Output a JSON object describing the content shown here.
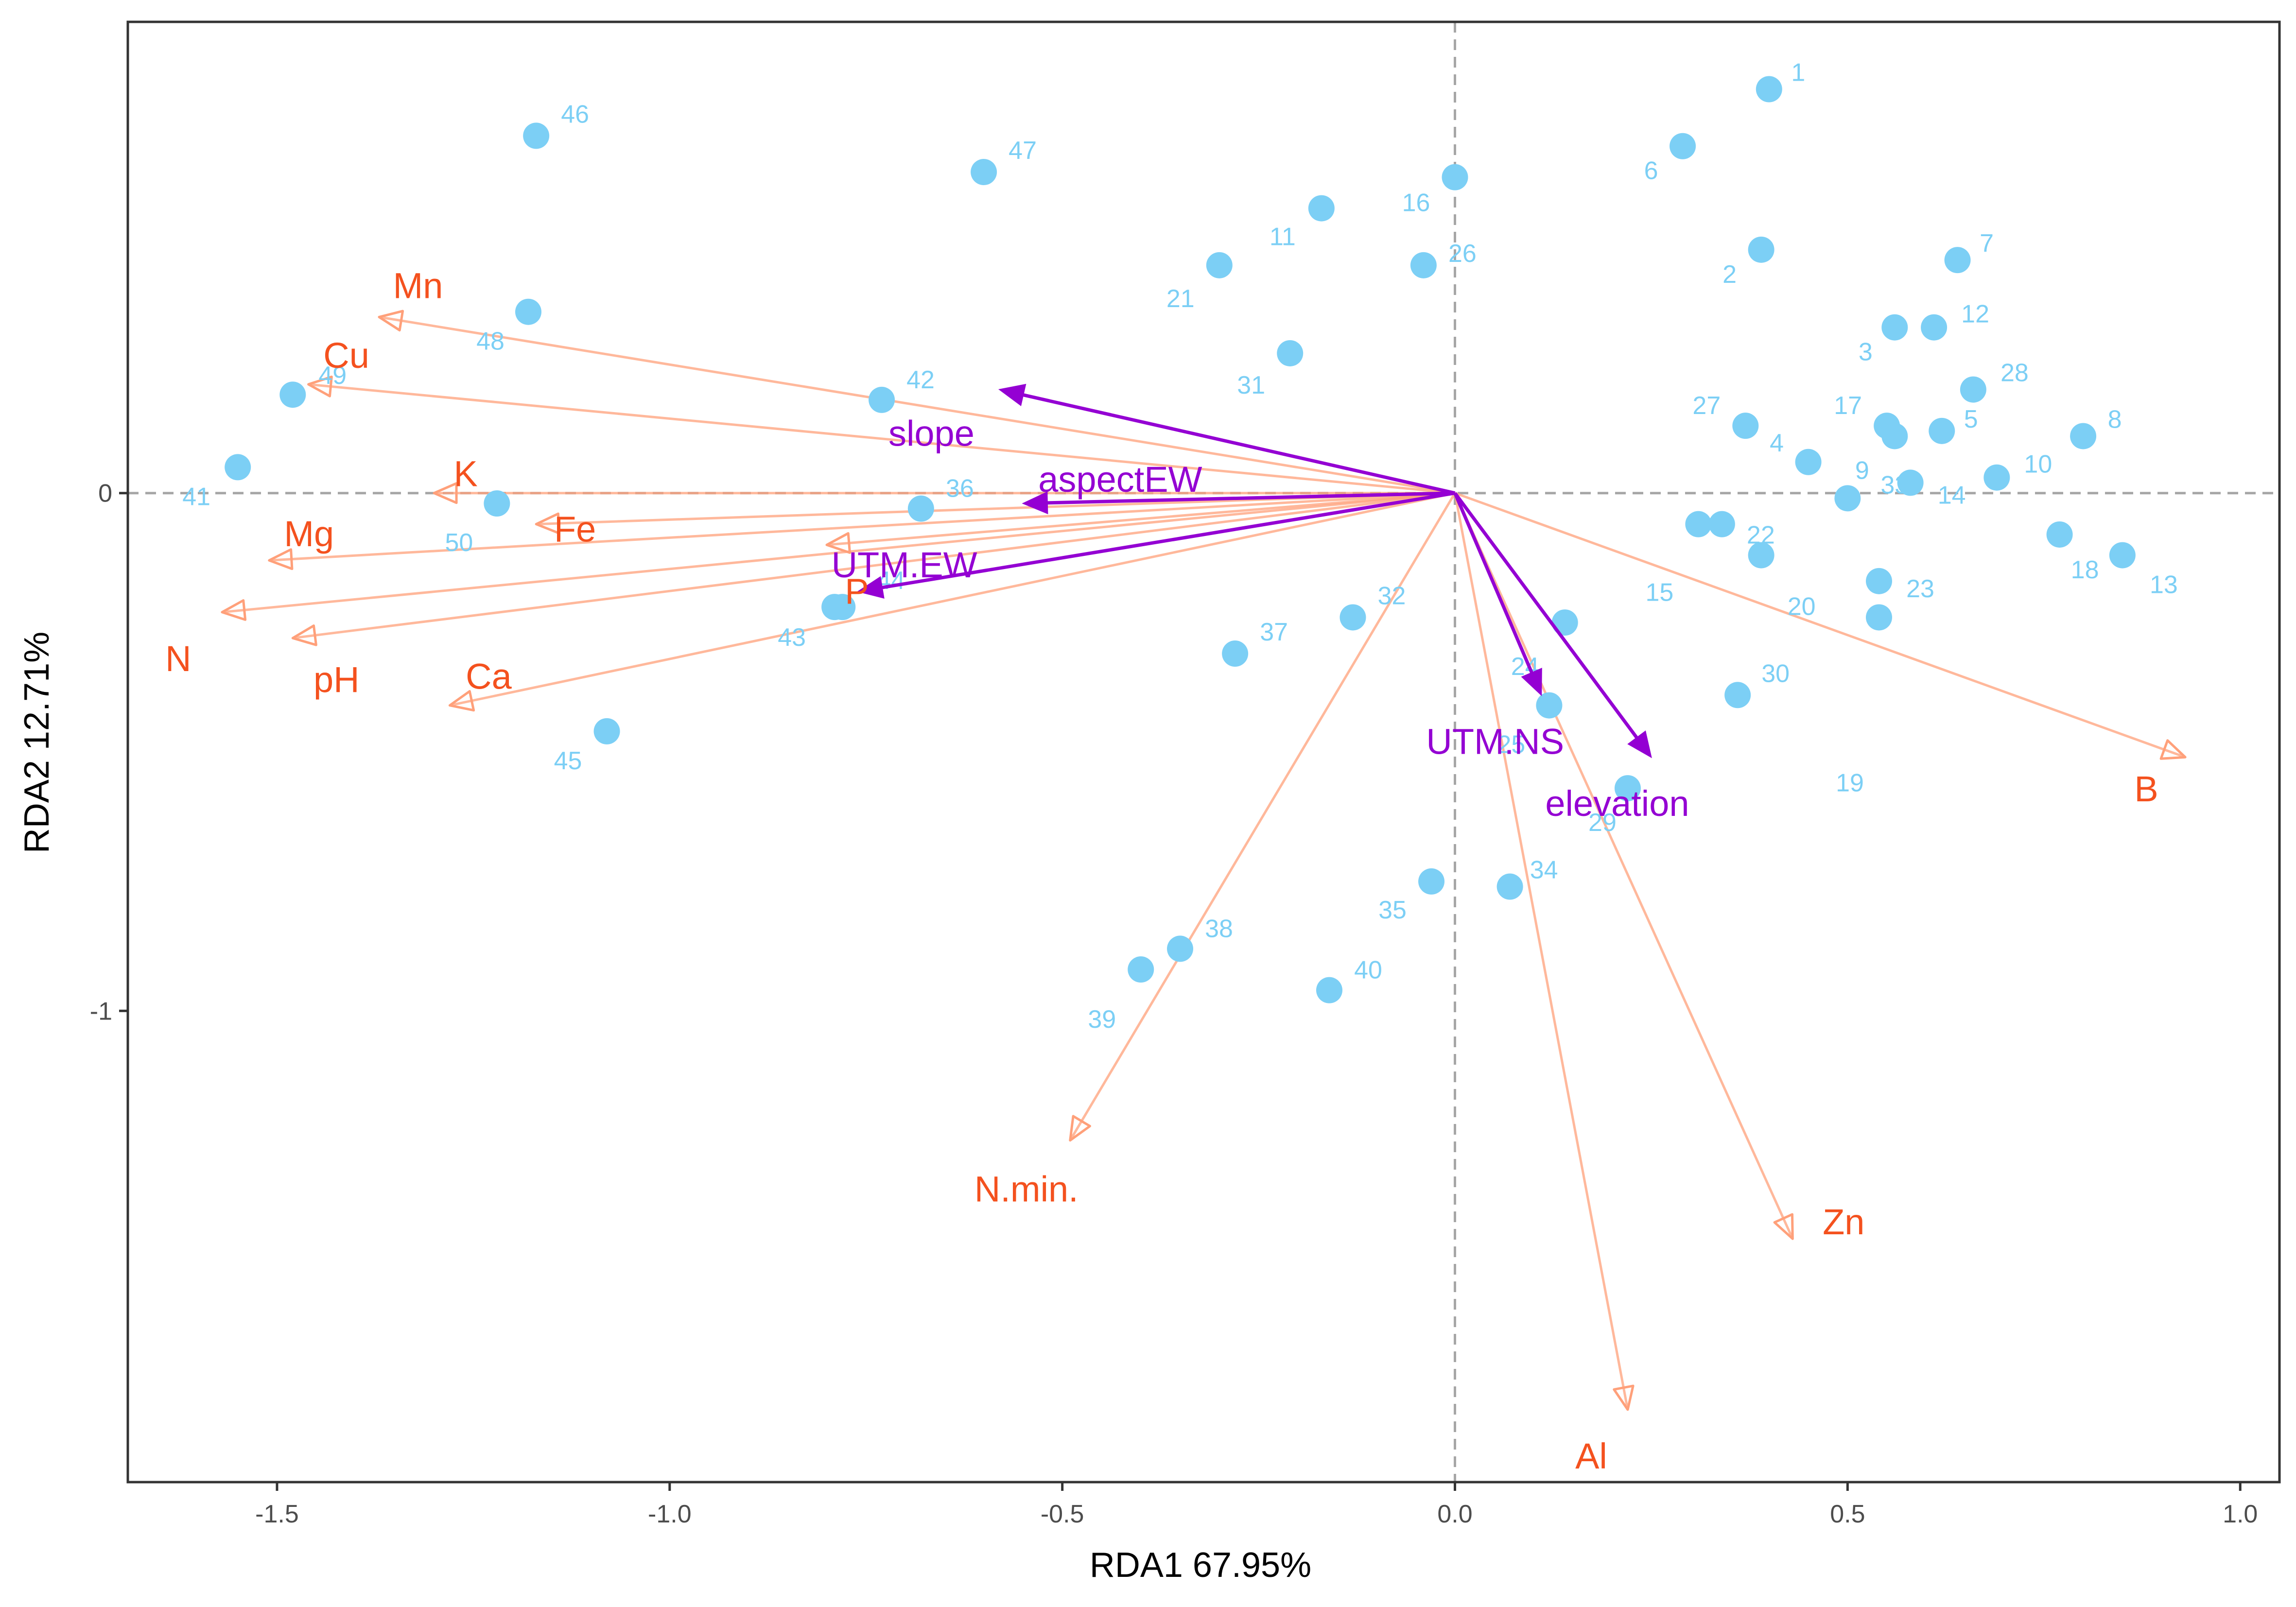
{
  "chart_data": {
    "type": "scatter",
    "subtype": "rda-biplot",
    "title": "",
    "xlabel": "RDA1 67.95%",
    "ylabel": "RDA2 12.71%",
    "xlim": [
      -1.69,
      1.05
    ],
    "ylim": [
      -1.91,
      0.91
    ],
    "x_ticks": [
      -1.5,
      -1.0,
      -0.5,
      0.0,
      0.5,
      1.0
    ],
    "x_tick_labels": [
      "-1.5",
      "-1.0",
      "-0.5",
      "0.0",
      "0.5",
      "1.0"
    ],
    "y_ticks": [
      -1,
      0
    ],
    "y_tick_labels": [
      "-1",
      "0"
    ],
    "grid": false,
    "reference_lines": {
      "x": 0,
      "y": 0,
      "style": "dashed"
    },
    "colors": {
      "sites": "#7ccff5",
      "response_arrows": "#ffa07a",
      "response_labels": "#f4511e",
      "explanatory_arrows": "#9400d3",
      "reference_lines": "#a6a6a6",
      "panel_border": "#333333"
    },
    "series": [
      {
        "name": "",
        "kind": "points",
        "points": [
          {
            "label": "1",
            "x": 0.4,
            "y": 0.78
          },
          {
            "label": "2",
            "x": 0.39,
            "y": 0.47
          },
          {
            "label": "3",
            "x": 0.56,
            "y": 0.32
          },
          {
            "label": "4",
            "x": 0.45,
            "y": 0.06
          },
          {
            "label": "5",
            "x": 0.62,
            "y": 0.12
          },
          {
            "label": "6",
            "x": 0.29,
            "y": 0.67
          },
          {
            "label": "7",
            "x": 0.64,
            "y": 0.45
          },
          {
            "label": "8",
            "x": 0.8,
            "y": 0.11
          },
          {
            "label": "9",
            "x": 0.5,
            "y": -0.01
          },
          {
            "label": "10",
            "x": 0.69,
            "y": 0.03
          },
          {
            "label": "11",
            "x": -0.17,
            "y": 0.55
          },
          {
            "label": "12",
            "x": 0.61,
            "y": 0.32
          },
          {
            "label": "13",
            "x": 0.85,
            "y": -0.12
          },
          {
            "label": "14",
            "x": 0.58,
            "y": 0.02
          },
          {
            "label": "15",
            "x": 0.31,
            "y": -0.06
          },
          {
            "label": "16",
            "x": 0.0,
            "y": 0.61
          },
          {
            "label": "17",
            "x": 0.55,
            "y": 0.13
          },
          {
            "label": "18",
            "x": 0.77,
            "y": -0.08
          },
          {
            "label": "19",
            "x": 0.54,
            "y": -0.24
          },
          {
            "label": "20",
            "x": 0.39,
            "y": -0.12
          },
          {
            "label": "21",
            "x": -0.3,
            "y": 0.44
          },
          {
            "label": "22",
            "x": 0.34,
            "y": -0.06
          },
          {
            "label": "23",
            "x": 0.54,
            "y": -0.17
          },
          {
            "label": "24",
            "x": 0.14,
            "y": -0.25
          },
          {
            "label": "25",
            "x": 0.12,
            "y": -0.41
          },
          {
            "label": "26",
            "x": -0.04,
            "y": 0.44
          },
          {
            "label": "27",
            "x": 0.37,
            "y": 0.13
          },
          {
            "label": "28",
            "x": 0.66,
            "y": 0.2
          },
          {
            "label": "29",
            "x": 0.22,
            "y": -0.57
          },
          {
            "label": "30",
            "x": 0.36,
            "y": -0.39
          },
          {
            "label": "31",
            "x": -0.21,
            "y": 0.27
          },
          {
            "label": "32",
            "x": -0.13,
            "y": -0.24
          },
          {
            "label": "33",
            "x": 0.56,
            "y": 0.11
          },
          {
            "label": "34",
            "x": 0.07,
            "y": -0.76
          },
          {
            "label": "35",
            "x": -0.03,
            "y": -0.75
          },
          {
            "label": "36",
            "x": -0.68,
            "y": -0.03
          },
          {
            "label": "37",
            "x": -0.28,
            "y": -0.31
          },
          {
            "label": "38",
            "x": -0.35,
            "y": -0.88
          },
          {
            "label": "39",
            "x": -0.4,
            "y": -0.92
          },
          {
            "label": "40",
            "x": -0.16,
            "y": -0.96
          },
          {
            "label": "41",
            "x": -1.55,
            "y": 0.05
          },
          {
            "label": "42",
            "x": -0.73,
            "y": 0.18
          },
          {
            "label": "43",
            "x": -0.79,
            "y": -0.22
          },
          {
            "label": "44",
            "x": -0.78,
            "y": -0.22
          },
          {
            "label": "45",
            "x": -1.08,
            "y": -0.46
          },
          {
            "label": "46",
            "x": -1.17,
            "y": 0.69
          },
          {
            "label": "47",
            "x": -0.6,
            "y": 0.62
          },
          {
            "label": "48",
            "x": -1.18,
            "y": 0.35
          },
          {
            "label": "49",
            "x": -1.48,
            "y": 0.19
          },
          {
            "label": "50",
            "x": -1.22,
            "y": -0.02
          }
        ]
      },
      {
        "name": "",
        "kind": "arrows",
        "arrows": [
          {
            "label": "Mn",
            "x": -1.37,
            "y": 0.34
          },
          {
            "label": "Cu",
            "x": -1.46,
            "y": 0.21
          },
          {
            "label": "K",
            "x": -1.3,
            "y": 0.0
          },
          {
            "label": "Fe",
            "x": -1.17,
            "y": -0.06
          },
          {
            "label": "Mg",
            "x": -1.51,
            "y": -0.13
          },
          {
            "label": "N",
            "x": -1.57,
            "y": -0.23
          },
          {
            "label": "pH",
            "x": -1.48,
            "y": -0.28
          },
          {
            "label": "Ca",
            "x": -1.28,
            "y": -0.41
          },
          {
            "label": "P",
            "x": -0.8,
            "y": -0.1
          },
          {
            "label": "N.min.",
            "x": -0.49,
            "y": -1.25
          },
          {
            "label": "Al",
            "x": 0.22,
            "y": -1.77
          },
          {
            "label": "Zn",
            "x": 0.43,
            "y": -1.44
          },
          {
            "label": "B",
            "x": 0.93,
            "y": -0.51
          }
        ]
      },
      {
        "name": "",
        "kind": "arrows",
        "arrows": [
          {
            "label": "slope",
            "x": -0.58,
            "y": 0.2
          },
          {
            "label": "aspectEW",
            "x": -0.55,
            "y": -0.02
          },
          {
            "label": "UTM.EW",
            "x": -0.76,
            "y": -0.19
          },
          {
            "label": "UTM.NS",
            "x": 0.11,
            "y": -0.39
          },
          {
            "label": "elevation",
            "x": 0.25,
            "y": -0.51
          }
        ]
      }
    ]
  }
}
